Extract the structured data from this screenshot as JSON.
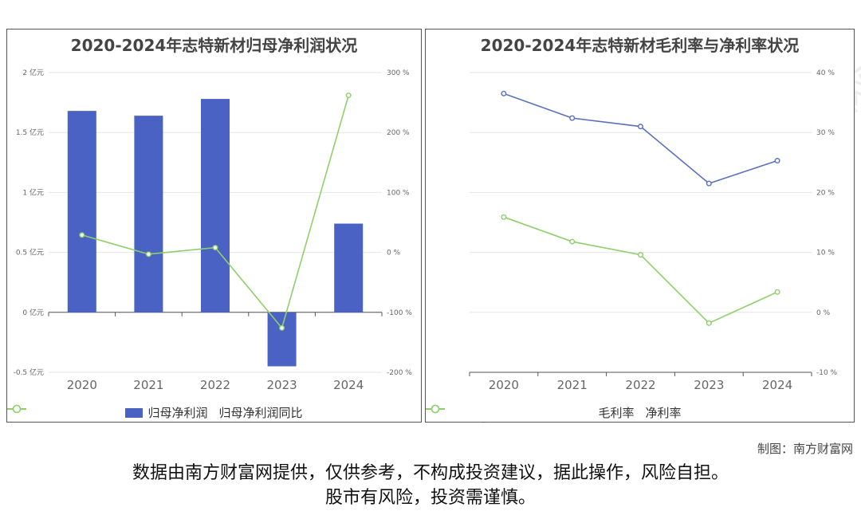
{
  "chart_data": [
    {
      "type": "bar",
      "title": "2020-2024年志特新材归母净利润状况",
      "categories": [
        "2020",
        "2021",
        "2022",
        "2023",
        "2024"
      ],
      "series": [
        {
          "name": "归母净利润",
          "type": "bar",
          "axis": "left",
          "values": [
            1.68,
            1.64,
            1.78,
            -0.45,
            0.74
          ]
        },
        {
          "name": "归母净利润同比",
          "type": "line",
          "axis": "right",
          "values": [
            29,
            -3,
            8,
            -126,
            262
          ]
        }
      ],
      "y_left": {
        "ticks": [
          -0.5,
          0,
          0.5,
          1,
          1.5,
          2
        ],
        "tick_labels": [
          "-0.5 亿元",
          "0 亿元",
          "0.5 亿元",
          "1 亿元",
          "1.5 亿元",
          "2 亿元"
        ],
        "ylim": [
          -0.5,
          2
        ]
      },
      "y_right": {
        "ticks": [
          -200,
          -100,
          0,
          100,
          200,
          300
        ],
        "tick_labels": [
          "-200 %",
          "-100 %",
          "0 %",
          "100 %",
          "200 %",
          "300 %"
        ],
        "ylim": [
          -200,
          300
        ]
      },
      "grid": true,
      "legend_position": "bottom",
      "colors": {
        "bar": "#4a62c4",
        "line": "#8fcf6a"
      }
    },
    {
      "type": "line",
      "title": "2020-2024年志特新材毛利率与净利率状况",
      "categories": [
        "2020",
        "2021",
        "2022",
        "2023",
        "2024"
      ],
      "series": [
        {
          "name": "毛利率",
          "values": [
            36.5,
            32.4,
            31.0,
            21.5,
            25.3
          ]
        },
        {
          "name": "净利率",
          "values": [
            15.9,
            11.8,
            9.6,
            -1.8,
            3.4
          ]
        }
      ],
      "y": {
        "ticks": [
          -10,
          0,
          10,
          20,
          30,
          40
        ],
        "tick_labels": [
          "-10 %",
          "0 %",
          "10 %",
          "20 %",
          "30 %",
          "40 %"
        ],
        "ylim": [
          -10,
          40
        ]
      },
      "grid": true,
      "legend_position": "bottom",
      "colors": {
        "毛利率": "#5b6fc2",
        "净利率": "#8fcf6a"
      }
    }
  ],
  "watermark": {
    "text1": "南方财富网",
    "text2": "Southmoney.com"
  },
  "credit": "制图：南方财富网",
  "disclaimer": {
    "line1": "数据由南方财富网提供，仅供参考，不构成投资建议，据此操作，风险自担。",
    "line2": "股市有风险，投资需谨慎。"
  }
}
